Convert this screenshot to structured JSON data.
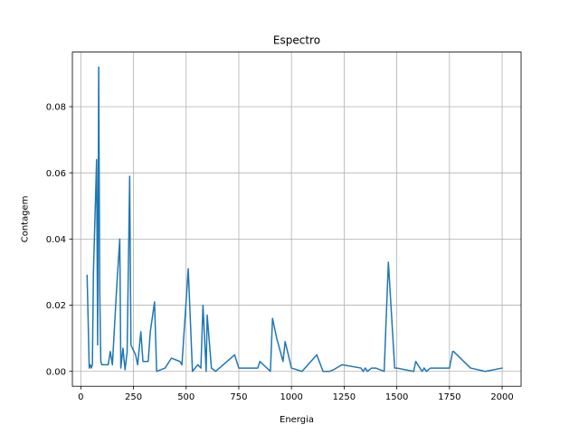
{
  "chart_data": {
    "type": "line",
    "title": "Espectro",
    "xlabel": "Energia",
    "ylabel": "Contagem",
    "xlim": [
      -40,
      2090
    ],
    "ylim": [
      -0.0045,
      0.0965
    ],
    "grid": true,
    "xticks": [
      0,
      250,
      500,
      750,
      1000,
      1250,
      1500,
      1750,
      2000
    ],
    "yticks": [
      0.0,
      0.02,
      0.04,
      0.06,
      0.08
    ],
    "ytick_labels": [
      "0.00",
      "0.02",
      "0.04",
      "0.06",
      "0.08"
    ],
    "series": [
      {
        "color": "#1f77b4",
        "x": [
          30,
          40,
          45,
          50,
          55,
          60,
          75,
          80,
          85,
          90,
          95,
          100,
          110,
          130,
          140,
          150,
          170,
          185,
          190,
          200,
          210,
          220,
          232,
          238,
          245,
          260,
          270,
          285,
          295,
          300,
          320,
          330,
          350,
          360,
          400,
          430,
          470,
          480,
          510,
          530,
          555,
          570,
          580,
          595,
          600,
          620,
          640,
          730,
          750,
          800,
          840,
          850,
          900,
          910,
          930,
          960,
          970,
          1000,
          1050,
          1120,
          1150,
          1180,
          1200,
          1240,
          1330,
          1340,
          1350,
          1360,
          1380,
          1400,
          1440,
          1460,
          1490,
          1500,
          1580,
          1590,
          1600,
          1620,
          1630,
          1640,
          1660,
          1750,
          1765,
          1770,
          1850,
          1920,
          2000
        ],
        "y": [
          0.029,
          0.001,
          0.002,
          0.001,
          0.002,
          0.03,
          0.064,
          0.008,
          0.092,
          0.024,
          0.003,
          0.002,
          0.002,
          0.002,
          0.006,
          0.002,
          0.025,
          0.04,
          0.001,
          0.007,
          0.0005,
          0.006,
          0.059,
          0.008,
          0.007,
          0.005,
          0.002,
          0.012,
          0.003,
          0.003,
          0.003,
          0.012,
          0.021,
          0.0,
          0.001,
          0.004,
          0.003,
          0.002,
          0.031,
          0.0,
          0.002,
          0.001,
          0.02,
          0.0,
          0.017,
          0.001,
          0.0,
          0.005,
          0.001,
          0.001,
          0.001,
          0.003,
          0.0,
          0.016,
          0.01,
          0.003,
          0.009,
          0.001,
          0.0,
          0.005,
          0.0,
          0.0,
          0.0005,
          0.002,
          0.001,
          0.0,
          0.001,
          0.0,
          0.001,
          0.001,
          0.0,
          0.033,
          0.001,
          0.001,
          0.0,
          0.003,
          0.002,
          0.0,
          0.001,
          0.0,
          0.001,
          0.001,
          0.006,
          0.006,
          0.001,
          0.0,
          0.001
        ]
      }
    ]
  }
}
